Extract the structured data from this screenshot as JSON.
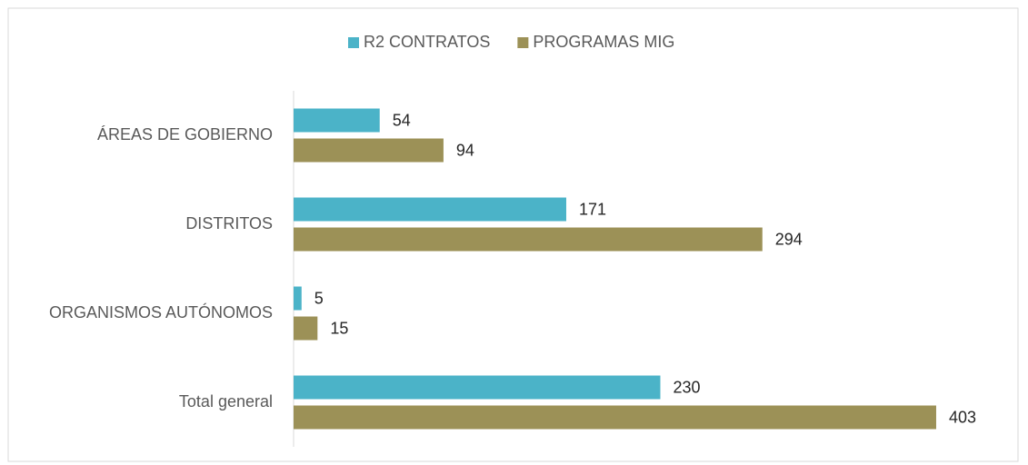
{
  "chart_data": {
    "type": "bar",
    "orientation": "horizontal",
    "categories": [
      "ÁREAS DE GOBIERNO",
      "DISTRITOS",
      "ORGANISMOS AUTÓNOMOS",
      "Total general"
    ],
    "series": [
      {
        "name": "R2 CONTRATOS",
        "color": "#4bb3c8",
        "values": [
          54,
          171,
          5,
          230
        ]
      },
      {
        "name": "PROGRAMAS MIG",
        "color": "#9c9157",
        "values": [
          94,
          294,
          15,
          403
        ]
      }
    ],
    "xlim": [
      0,
      440
    ],
    "legend": "top"
  }
}
